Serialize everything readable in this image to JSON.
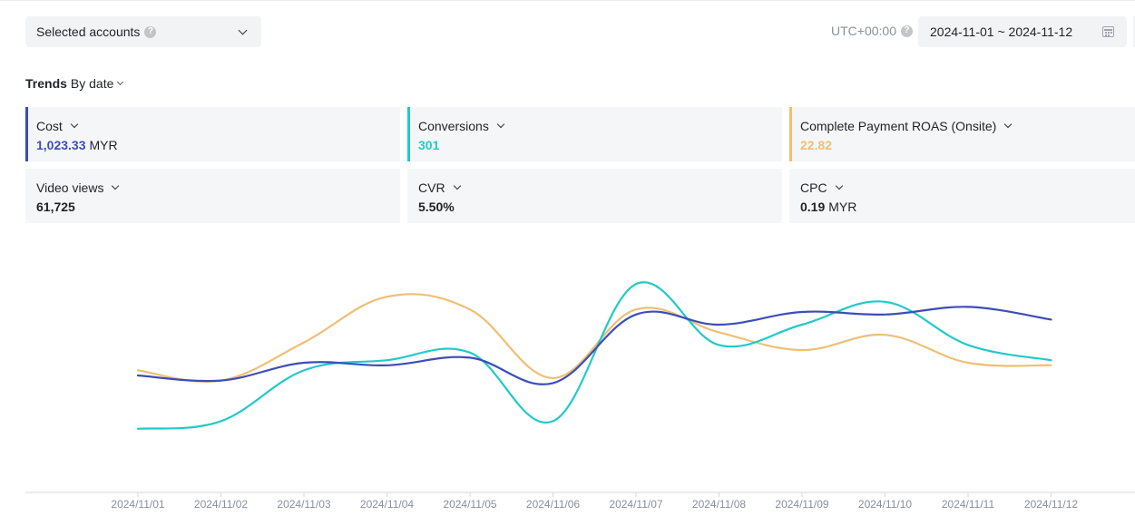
{
  "header": {
    "account_select_label": "Selected accounts",
    "timezone": "UTC+00:00",
    "date_range": "2024-11-01 ~ 2024-11-12"
  },
  "trends": {
    "title": "Trends",
    "mode": "By date"
  },
  "metrics": [
    {
      "label": "Cost",
      "value": "1,023.33",
      "unit": "MYR",
      "color": "#3d4db7"
    },
    {
      "label": "Conversions",
      "value": "301",
      "unit": "",
      "color": "#22c9c9"
    },
    {
      "label": "Complete Payment ROAS (Onsite)",
      "value": "22.82",
      "unit": "",
      "color": "#eebf74"
    },
    {
      "label": "Video views",
      "value": "61,725",
      "unit": "",
      "color": ""
    },
    {
      "label": "CVR",
      "value": "5.50%",
      "unit": "",
      "color": ""
    },
    {
      "label": "CPC",
      "value": "0.19",
      "unit": "MYR",
      "color": ""
    }
  ],
  "chart_data": {
    "type": "line",
    "x": [
      "2024/11/01",
      "2024/11/02",
      "2024/11/03",
      "2024/11/04",
      "2024/11/05",
      "2024/11/06",
      "2024/11/07",
      "2024/11/08",
      "2024/11/09",
      "2024/11/10",
      "2024/11/11",
      "2024/11/12"
    ],
    "ylim": [
      0,
      100
    ],
    "grid": false,
    "series": [
      {
        "name": "Cost",
        "color": "#3d4db7",
        "values": [
          45,
          43,
          50,
          49,
          52,
          42,
          69,
          65,
          70,
          69,
          72,
          67
        ]
      },
      {
        "name": "Conversions",
        "color": "#22c9c9",
        "values": [
          24,
          27,
          47,
          51,
          54,
          27,
          81,
          57,
          65,
          74,
          57,
          51
        ]
      },
      {
        "name": "Complete Payment ROAS (Onsite)",
        "color": "#eebf74",
        "values": [
          47,
          43,
          58,
          76,
          71,
          44,
          71,
          62,
          55,
          61,
          50,
          49
        ]
      }
    ]
  }
}
